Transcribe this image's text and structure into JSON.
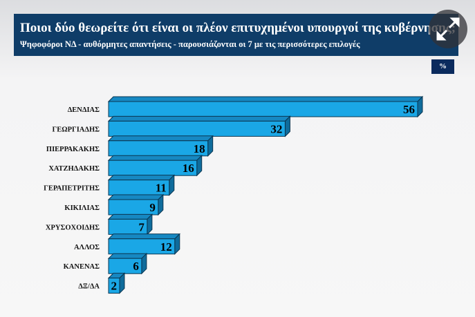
{
  "header": {
    "title": "Ποιοι δύο θεωρείτε ότι είναι οι πλέον επιτυχημένοι υπουργοί της κυβέρνησης;",
    "subtitle": "Ψηφοφόροι ΝΔ - αυθόρμητες απαντήσεις - παρουσιάζονται οι 7 με τις περισσότερες επιλογές",
    "unit_badge": "%"
  },
  "colors": {
    "header_bg": "#0f3d68",
    "bar": "#1aa7e6",
    "bar_top": "#1688c2",
    "bar_side": "#0f6c9c"
  },
  "chart_data": {
    "type": "bar",
    "orientation": "horizontal",
    "categories": [
      "ΔΕΝΔΙΑΣ",
      "ΓΕΩΡΓΙΑΔΗΣ",
      "ΠΙΕΡΡΑΚΑΚΗΣ",
      "ΧΑΤΖΗΔΑΚΗΣ",
      "ΓΕΡΑΠΕΤΡΙΤΗΣ",
      "ΚΙΚΙΛΙΑΣ",
      "ΧΡΥΣΟΧΟΙΔΗΣ",
      "ΑΛΛΟΣ",
      "ΚΑΝΕΝΑΣ",
      "ΔΞ/ΔΑ"
    ],
    "values": [
      56,
      32,
      18,
      16,
      11,
      9,
      7,
      12,
      6,
      2
    ],
    "data_labels": true,
    "grid": false
  }
}
